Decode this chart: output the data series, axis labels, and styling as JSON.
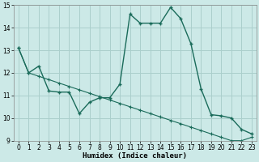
{
  "title": "",
  "xlabel": "Humidex (Indice chaleur)",
  "ylabel": "",
  "xlim": [
    -0.5,
    23.5
  ],
  "ylim": [
    9,
    15
  ],
  "xticks": [
    0,
    1,
    2,
    3,
    4,
    5,
    6,
    7,
    8,
    9,
    10,
    11,
    12,
    13,
    14,
    15,
    16,
    17,
    18,
    19,
    20,
    21,
    22,
    23
  ],
  "yticks": [
    9,
    10,
    11,
    12,
    13,
    14,
    15
  ],
  "bg_color": "#cce9e7",
  "line_color": "#1a6b5a",
  "grid_color": "#aacfcc",
  "line1_x": [
    0,
    1,
    2,
    3,
    4,
    5,
    6,
    7,
    8,
    9,
    10,
    11,
    12,
    13,
    14,
    15,
    16,
    17,
    18,
    19,
    20,
    21,
    22,
    23
  ],
  "line1_y": [
    13.1,
    12.0,
    12.3,
    11.2,
    11.15,
    11.15,
    10.2,
    10.7,
    10.9,
    10.9,
    11.5,
    14.6,
    14.2,
    14.2,
    14.2,
    14.9,
    14.4,
    13.3,
    11.3,
    10.15,
    10.1,
    10.0,
    9.5,
    9.3
  ],
  "line2_x": [
    0,
    1,
    2,
    3,
    4,
    5,
    6,
    7,
    8,
    9,
    10,
    11,
    12,
    13,
    14,
    15,
    16,
    17,
    18,
    19,
    20,
    21,
    22,
    23
  ],
  "line2_y": [
    13.1,
    12.0,
    11.85,
    11.7,
    11.55,
    11.4,
    11.25,
    11.1,
    10.95,
    10.8,
    10.65,
    10.5,
    10.35,
    10.2,
    10.05,
    9.9,
    9.75,
    9.6,
    9.45,
    9.3,
    9.15,
    9.0,
    9.0,
    9.15
  ]
}
